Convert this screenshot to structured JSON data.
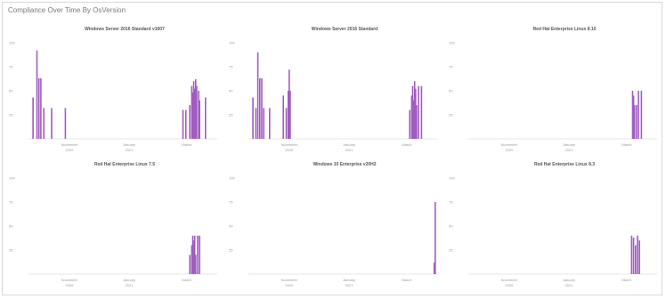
{
  "panel": {
    "title": "Compliance Over Time By OsVersion"
  },
  "colors": {
    "bar": "#a05cc0"
  },
  "chart_data": [
    {
      "type": "bar",
      "title": "Windows Server 2016 Standard v1607",
      "ylim": [
        0,
        100
      ],
      "yticks": [
        "100",
        "75",
        "50",
        "25"
      ],
      "xticks": [
        {
          "line1": "November",
          "line2": "2020",
          "date": "2020-11-01"
        },
        {
          "line1": "January",
          "line2": "2021",
          "date": "2021-01-01"
        },
        {
          "line1": "March",
          "line2": "",
          "date": "2021-03-01"
        }
      ],
      "xlim": [
        "2020-09-24",
        "2021-04-01"
      ],
      "points": [
        {
          "x": "2020-09-25",
          "y": 43
        },
        {
          "x": "2020-09-29",
          "y": 92
        },
        {
          "x": "2020-10-01",
          "y": 63
        },
        {
          "x": "2020-10-03",
          "y": 63
        },
        {
          "x": "2020-10-06",
          "y": 32
        },
        {
          "x": "2020-10-14",
          "y": 32
        },
        {
          "x": "2020-10-28",
          "y": 32
        },
        {
          "x": "2021-02-25",
          "y": 30
        },
        {
          "x": "2021-02-28",
          "y": 30
        },
        {
          "x": "2021-03-04",
          "y": 35
        },
        {
          "x": "2021-03-06",
          "y": 55
        },
        {
          "x": "2021-03-07",
          "y": 48
        },
        {
          "x": "2021-03-08",
          "y": 60
        },
        {
          "x": "2021-03-09",
          "y": 52
        },
        {
          "x": "2021-03-10",
          "y": 62
        },
        {
          "x": "2021-03-11",
          "y": 55
        },
        {
          "x": "2021-03-13",
          "y": 50
        },
        {
          "x": "2021-03-14",
          "y": 40
        },
        {
          "x": "2021-03-20",
          "y": 43
        }
      ]
    },
    {
      "type": "bar",
      "title": "Windows Server 2016 Standard",
      "ylim": [
        0,
        100
      ],
      "yticks": [
        "100",
        "75",
        "50",
        "25"
      ],
      "xticks": [
        {
          "line1": "November",
          "line2": "2020",
          "date": "2020-11-01"
        },
        {
          "line1": "January",
          "line2": "2021",
          "date": "2021-01-01"
        },
        {
          "line1": "March",
          "line2": "",
          "date": "2021-03-01"
        }
      ],
      "xlim": [
        "2020-09-24",
        "2021-04-01"
      ],
      "points": [
        {
          "x": "2020-09-25",
          "y": 43
        },
        {
          "x": "2020-09-28",
          "y": 32
        },
        {
          "x": "2020-09-30",
          "y": 90
        },
        {
          "x": "2020-10-02",
          "y": 63
        },
        {
          "x": "2020-10-04",
          "y": 63
        },
        {
          "x": "2020-10-06",
          "y": 32
        },
        {
          "x": "2020-10-12",
          "y": 32
        },
        {
          "x": "2020-10-26",
          "y": 45
        },
        {
          "x": "2020-10-29",
          "y": 32
        },
        {
          "x": "2020-10-31",
          "y": 50
        },
        {
          "x": "2020-11-01",
          "y": 72
        },
        {
          "x": "2020-11-02",
          "y": 50
        },
        {
          "x": "2021-03-04",
          "y": 30
        },
        {
          "x": "2021-03-06",
          "y": 45
        },
        {
          "x": "2021-03-07",
          "y": 55
        },
        {
          "x": "2021-03-08",
          "y": 40
        },
        {
          "x": "2021-03-09",
          "y": 60
        },
        {
          "x": "2021-03-10",
          "y": 52
        },
        {
          "x": "2021-03-11",
          "y": 35
        },
        {
          "x": "2021-03-13",
          "y": 55
        },
        {
          "x": "2021-03-16",
          "y": 55
        }
      ]
    },
    {
      "type": "bar",
      "title": "Red Hat Enterprise Linux 8.10",
      "ylim": [
        0,
        100
      ],
      "yticks": [
        "100",
        "75",
        "50",
        "25"
      ],
      "xticks": [
        {
          "line1": "November",
          "line2": "2020",
          "date": "2020-11-01"
        },
        {
          "line1": "January",
          "line2": "2021",
          "date": "2021-01-01"
        },
        {
          "line1": "March",
          "line2": "",
          "date": "2021-03-01"
        }
      ],
      "xlim": [
        "2020-09-24",
        "2021-04-01"
      ],
      "points": [
        {
          "x": "2021-03-07",
          "y": 50
        },
        {
          "x": "2021-03-08",
          "y": 45
        },
        {
          "x": "2021-03-09",
          "y": 35
        },
        {
          "x": "2021-03-11",
          "y": 35
        },
        {
          "x": "2021-03-13",
          "y": 50
        },
        {
          "x": "2021-03-16",
          "y": 50
        }
      ]
    },
    {
      "type": "bar",
      "title": "Red Hat Enterprise Linux 7.5",
      "ylim": [
        0,
        100
      ],
      "yticks": [
        "100",
        "75",
        "50",
        "25"
      ],
      "xticks": [
        {
          "line1": "November",
          "line2": "2020",
          "date": "2020-11-01"
        },
        {
          "line1": "January",
          "line2": "2021",
          "date": "2021-01-01"
        },
        {
          "line1": "March",
          "line2": "",
          "date": "2021-03-01"
        }
      ],
      "xlim": [
        "2020-09-24",
        "2021-04-01"
      ],
      "points": [
        {
          "x": "2021-03-04",
          "y": 20
        },
        {
          "x": "2021-03-06",
          "y": 30
        },
        {
          "x": "2021-03-07",
          "y": 40
        },
        {
          "x": "2021-03-08",
          "y": 35
        },
        {
          "x": "2021-03-09",
          "y": 40
        },
        {
          "x": "2021-03-10",
          "y": 20
        },
        {
          "x": "2021-03-12",
          "y": 40
        },
        {
          "x": "2021-03-14",
          "y": 40
        }
      ]
    },
    {
      "type": "bar",
      "title": "Windows 10 Enterprise v20H2",
      "ylim": [
        0,
        100
      ],
      "yticks": [
        "100",
        "75",
        "50",
        "25"
      ],
      "xticks": [
        {
          "line1": "November",
          "line2": "2020",
          "date": "2020-11-01"
        },
        {
          "line1": "January",
          "line2": "2021",
          "date": "2021-01-01"
        },
        {
          "line1": "March",
          "line2": "",
          "date": "2021-03-01"
        }
      ],
      "xlim": [
        "2020-09-24",
        "2021-04-01"
      ],
      "points": [
        {
          "x": "2021-03-29",
          "y": 12
        },
        {
          "x": "2021-03-30",
          "y": 75
        }
      ]
    },
    {
      "type": "bar",
      "title": "Red Hat Enterprise Linux 8.3",
      "ylim": [
        0,
        100
      ],
      "yticks": [
        "100",
        "75",
        "50",
        "25"
      ],
      "xticks": [
        {
          "line1": "November",
          "line2": "2020",
          "date": "2020-11-01"
        },
        {
          "line1": "January",
          "line2": "2021",
          "date": "2021-01-01"
        },
        {
          "line1": "March",
          "line2": "",
          "date": "2021-03-01"
        }
      ],
      "xlim": [
        "2020-09-24",
        "2021-04-01"
      ],
      "points": [
        {
          "x": "2021-03-06",
          "y": 40
        },
        {
          "x": "2021-03-08",
          "y": 38
        },
        {
          "x": "2021-03-10",
          "y": 30
        },
        {
          "x": "2021-03-12",
          "y": 40
        },
        {
          "x": "2021-03-14",
          "y": 35
        }
      ]
    }
  ]
}
